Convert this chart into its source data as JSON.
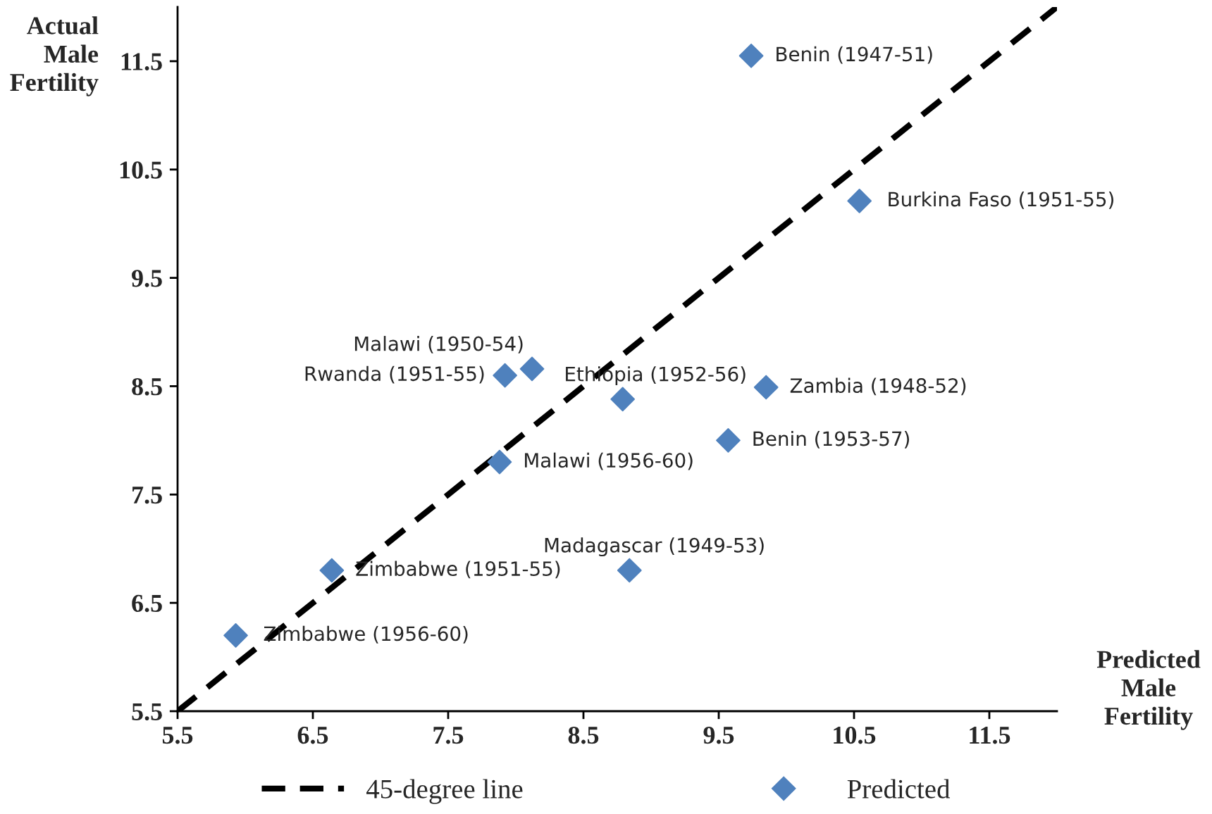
{
  "chart_data": {
    "type": "scatter",
    "xlabel": "Predicted\nMale\nFertility",
    "ylabel": "Actual\nMale\nFertility",
    "xlim": [
      5.5,
      12
    ],
    "ylim": [
      5.5,
      12
    ],
    "xticks": [
      5.5,
      6.5,
      7.5,
      8.5,
      9.5,
      10.5,
      11.5
    ],
    "yticks": [
      5.5,
      6.5,
      7.5,
      8.5,
      9.5,
      10.5,
      11.5
    ],
    "grid": false,
    "legend": "bottom",
    "series": [
      {
        "name": "45-degree line",
        "type": "line",
        "color": "#000000",
        "line_style": "dashed",
        "marker": "none",
        "x": [
          5.5,
          12
        ],
        "values": [
          5.5,
          12
        ]
      },
      {
        "name": "Predicted",
        "color": "#4f81bd",
        "marker": "diamond",
        "x": [
          9.74,
          10.54,
          8.12,
          7.92,
          8.79,
          9.85,
          9.57,
          7.88,
          6.64,
          8.84,
          5.93
        ],
        "values": [
          11.55,
          10.21,
          8.66,
          8.6,
          8.38,
          8.49,
          8.0,
          7.8,
          6.8,
          6.8,
          6.2
        ]
      }
    ],
    "annotations": [
      {
        "text": "Benin (1947-51)",
        "x": 9.74,
        "y": 11.55
      },
      {
        "text": "Burkina Faso (1951-55)",
        "x": 10.54,
        "y": 10.21
      },
      {
        "text": "Malawi (1950-54)",
        "x": 8.12,
        "y": 8.66
      },
      {
        "text": "Rwanda (1951-55)",
        "x": 7.92,
        "y": 8.6
      },
      {
        "text": "Ethiopia (1952-56)",
        "x": 8.79,
        "y": 8.38
      },
      {
        "text": "Zambia (1948-52)",
        "x": 9.85,
        "y": 8.49
      },
      {
        "text": "Benin (1953-57)",
        "x": 9.57,
        "y": 8.0
      },
      {
        "text": "Malawi (1956-60)",
        "x": 7.88,
        "y": 7.8
      },
      {
        "text": "Zimbabwe (1951-55)",
        "x": 6.64,
        "y": 6.8
      },
      {
        "text": "Madagascar (1949-53)",
        "x": 8.84,
        "y": 6.8
      },
      {
        "text": "Zimbabwe (1956-60)",
        "x": 5.93,
        "y": 6.2
      }
    ]
  }
}
